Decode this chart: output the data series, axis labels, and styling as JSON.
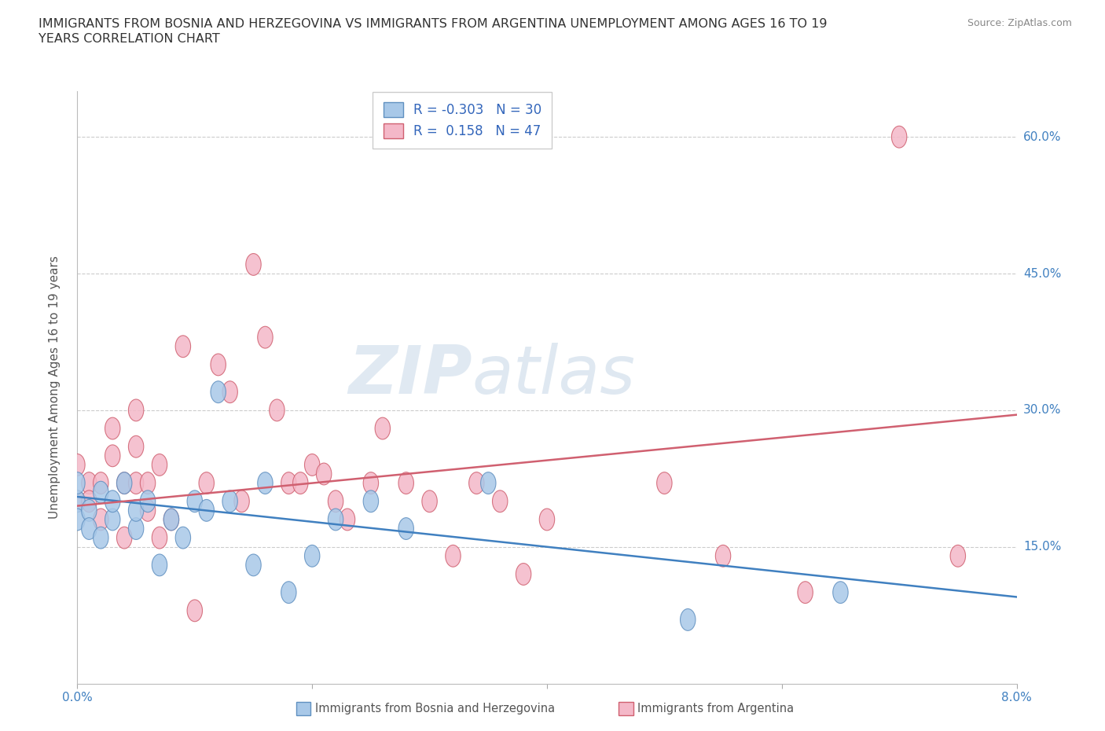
{
  "title_line1": "IMMIGRANTS FROM BOSNIA AND HERZEGOVINA VS IMMIGRANTS FROM ARGENTINA UNEMPLOYMENT AMONG AGES 16 TO 19",
  "title_line2": "YEARS CORRELATION CHART",
  "source": "Source: ZipAtlas.com",
  "ylabel": "Unemployment Among Ages 16 to 19 years",
  "xlim": [
    0.0,
    0.08
  ],
  "ylim": [
    0.0,
    0.65
  ],
  "ytick_positions": [
    0.15,
    0.3,
    0.45,
    0.6
  ],
  "ytick_labels": [
    "15.0%",
    "30.0%",
    "45.0%",
    "60.0%"
  ],
  "watermark_zip": "ZIP",
  "watermark_atlas": "atlas",
  "legend_r1": "R = -0.303",
  "legend_n1": "N = 30",
  "legend_r2": "R =  0.158",
  "legend_n2": "N = 47",
  "color_blue": "#a8c8e8",
  "color_pink": "#f4b8c8",
  "line_color_blue": "#4080c0",
  "line_color_pink": "#d06070",
  "bosnia_x": [
    0.0,
    0.0,
    0.0,
    0.001,
    0.001,
    0.002,
    0.002,
    0.003,
    0.003,
    0.004,
    0.005,
    0.005,
    0.006,
    0.007,
    0.008,
    0.009,
    0.01,
    0.011,
    0.012,
    0.013,
    0.015,
    0.016,
    0.018,
    0.02,
    0.022,
    0.025,
    0.028,
    0.035,
    0.052,
    0.065
  ],
  "bosnia_y": [
    0.2,
    0.18,
    0.22,
    0.19,
    0.17,
    0.16,
    0.21,
    0.18,
    0.2,
    0.22,
    0.17,
    0.19,
    0.2,
    0.13,
    0.18,
    0.16,
    0.2,
    0.19,
    0.32,
    0.2,
    0.13,
    0.22,
    0.1,
    0.14,
    0.18,
    0.2,
    0.17,
    0.22,
    0.07,
    0.1
  ],
  "argentina_x": [
    0.0,
    0.0,
    0.001,
    0.001,
    0.002,
    0.002,
    0.003,
    0.003,
    0.004,
    0.004,
    0.005,
    0.005,
    0.005,
    0.006,
    0.006,
    0.007,
    0.007,
    0.008,
    0.009,
    0.01,
    0.011,
    0.012,
    0.013,
    0.014,
    0.015,
    0.016,
    0.017,
    0.018,
    0.019,
    0.02,
    0.021,
    0.022,
    0.023,
    0.025,
    0.026,
    0.028,
    0.03,
    0.032,
    0.034,
    0.036,
    0.038,
    0.04,
    0.05,
    0.055,
    0.062,
    0.07,
    0.075
  ],
  "argentina_y": [
    0.2,
    0.24,
    0.22,
    0.2,
    0.18,
    0.22,
    0.25,
    0.28,
    0.16,
    0.22,
    0.22,
    0.26,
    0.3,
    0.19,
    0.22,
    0.24,
    0.16,
    0.18,
    0.37,
    0.08,
    0.22,
    0.35,
    0.32,
    0.2,
    0.46,
    0.38,
    0.3,
    0.22,
    0.22,
    0.24,
    0.23,
    0.2,
    0.18,
    0.22,
    0.28,
    0.22,
    0.2,
    0.14,
    0.22,
    0.2,
    0.12,
    0.18,
    0.22,
    0.14,
    0.1,
    0.6,
    0.14
  ],
  "bos_trend_x0": 0.0,
  "bos_trend_y0": 0.205,
  "bos_trend_x1": 0.08,
  "bos_trend_y1": 0.095,
  "arg_trend_x0": 0.0,
  "arg_trend_y0": 0.195,
  "arg_trend_x1": 0.08,
  "arg_trend_y1": 0.295
}
